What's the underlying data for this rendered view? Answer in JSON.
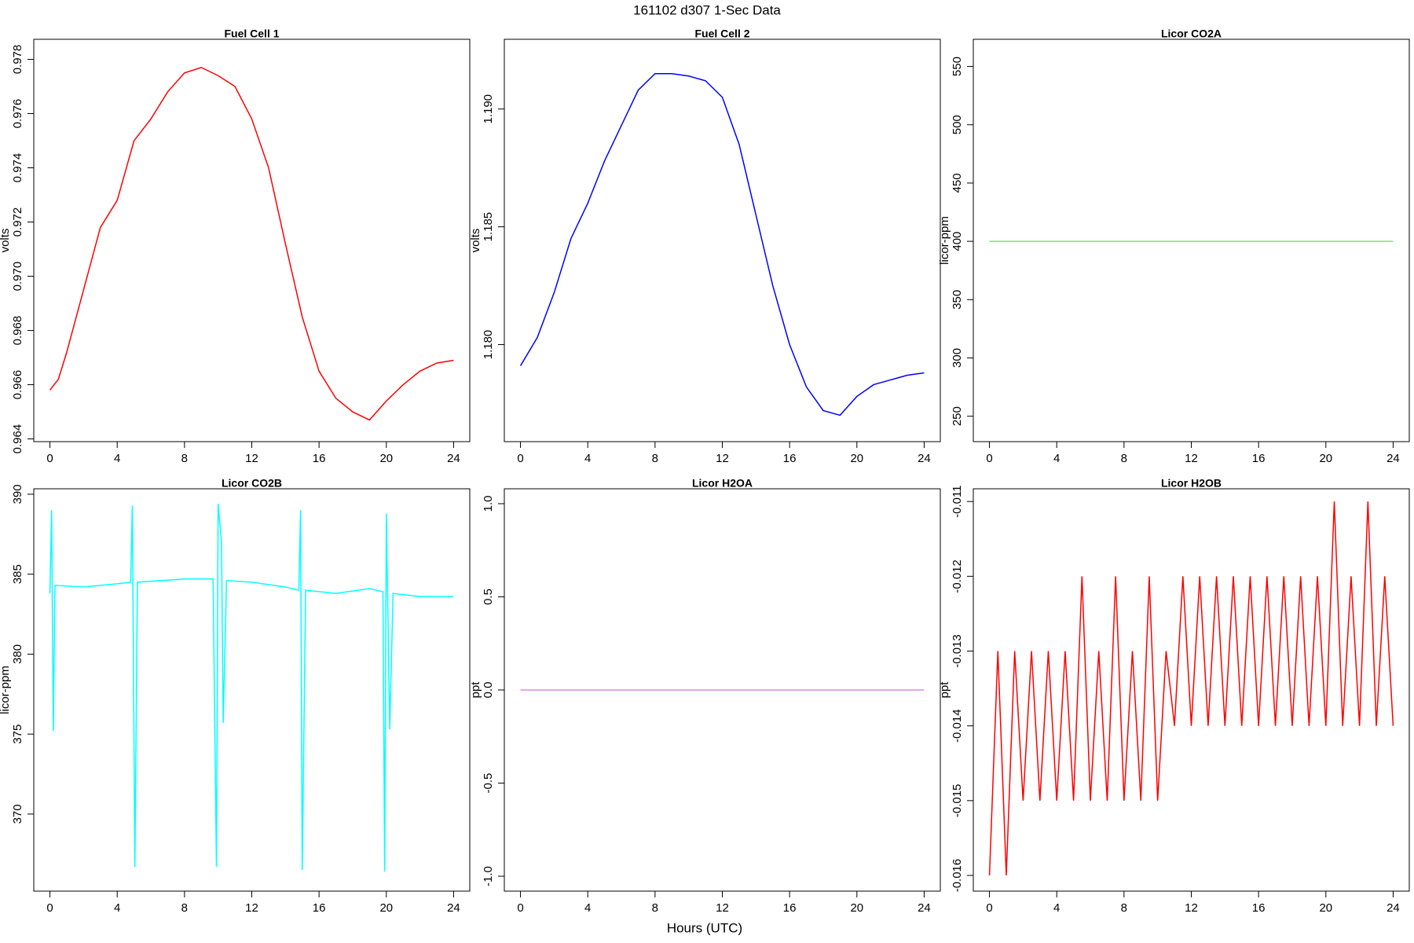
{
  "title": "161102   d307   1-Sec Data",
  "xlabel": "Hours (UTC)",
  "chart_data": [
    {
      "type": "line",
      "title": "Fuel Cell 1",
      "ylabel": "volts",
      "color": "#ff0000",
      "x": [
        0,
        0.5,
        1,
        2,
        3,
        4,
        5,
        6,
        7,
        8,
        9,
        10,
        11,
        12,
        13,
        14,
        15,
        16,
        17,
        18,
        19,
        20,
        21,
        22,
        23,
        24
      ],
      "values": [
        0.9658,
        0.9662,
        0.9672,
        0.9695,
        0.9718,
        0.9728,
        0.975,
        0.9758,
        0.9768,
        0.9775,
        0.9777,
        0.9774,
        0.977,
        0.9758,
        0.974,
        0.9712,
        0.9685,
        0.9665,
        0.9655,
        0.965,
        0.9647,
        0.9654,
        0.966,
        0.9665,
        0.9668,
        0.9669
      ],
      "xlim": [
        -0.96,
        24.96
      ],
      "xticks": [
        0,
        4,
        8,
        12,
        16,
        20,
        24
      ],
      "ylim": [
        0.9639,
        0.97874
      ],
      "yticks": [
        {
          "value": 0.964,
          "label": "0.964"
        },
        {
          "value": 0.966,
          "label": "0.966"
        },
        {
          "value": 0.968,
          "label": "0.968"
        },
        {
          "value": 0.97,
          "label": "0.970"
        },
        0.972,
        0.974,
        0.976,
        0.978
      ]
    },
    {
      "type": "line",
      "title": "Fuel Cell 2",
      "ylabel": "volts",
      "color": "#0000ff",
      "x": [
        0,
        1,
        2,
        3,
        4,
        5,
        6,
        7,
        8,
        9,
        10,
        11,
        12,
        13,
        14,
        15,
        16,
        17,
        18,
        19,
        20,
        21,
        22,
        23,
        24
      ],
      "values": [
        1.1791,
        1.1803,
        1.1822,
        1.1845,
        1.186,
        1.1878,
        1.1893,
        1.1908,
        1.1915,
        1.1915,
        1.1914,
        1.1912,
        1.1905,
        1.1885,
        1.1855,
        1.1825,
        1.18,
        1.1782,
        1.1772,
        1.177,
        1.1778,
        1.1783,
        1.1785,
        1.1787,
        1.1788
      ],
      "xlim": [
        -0.96,
        24.96
      ],
      "xticks": [
        0,
        4,
        8,
        12,
        16,
        20,
        24
      ],
      "ylim": [
        1.17588,
        1.19296
      ],
      "yticks": [
        {
          "value": 1.18,
          "label": "1.180"
        },
        1.185,
        {
          "value": 1.19,
          "label": "1.190"
        }
      ]
    },
    {
      "type": "line",
      "title": "Licor CO2A",
      "ylabel": "licor-ppm",
      "color": "#66ee66",
      "x": [
        0,
        24
      ],
      "values": [
        400,
        400
      ],
      "xlim": [
        -0.96,
        24.96
      ],
      "xticks": [
        0,
        4,
        8,
        12,
        16,
        20,
        24
      ],
      "ylim": [
        228.2,
        573.3
      ],
      "yticks": [
        250,
        300,
        350,
        400,
        450,
        500,
        550
      ]
    },
    {
      "type": "line",
      "title": "Licor CO2B",
      "ylabel": "licor-ppm",
      "color": "#00ffff",
      "x": [
        0,
        0.1,
        0.2,
        0.3,
        2,
        4,
        4.8,
        4.9,
        5.05,
        5.2,
        8,
        9.7,
        9.9,
        10,
        10.2,
        10.3,
        10.5,
        12,
        14,
        14.8,
        14.9,
        15,
        15.2,
        17,
        19,
        19.8,
        19.9,
        20,
        20.2,
        20.4,
        22,
        24
      ],
      "values": [
        383.8,
        389,
        375.2,
        384.3,
        384.2,
        384.4,
        384.5,
        389.3,
        366.7,
        384.5,
        384.7,
        384.7,
        366.7,
        389.4,
        387,
        375.7,
        384.6,
        384.5,
        384.2,
        384,
        389,
        366.5,
        384,
        383.8,
        384.1,
        383.9,
        366.4,
        388.8,
        375.3,
        383.8,
        383.6,
        383.6
      ],
      "xlim": [
        -0.96,
        24.96
      ],
      "xticks": [
        0,
        4,
        8,
        12,
        16,
        20,
        24
      ],
      "ylim": [
        365.18,
        390.34
      ],
      "yticks": [
        370,
        375,
        380,
        385,
        390
      ]
    },
    {
      "type": "line",
      "title": "Licor H2OA",
      "ylabel": "ppt",
      "color": "#dd88dd",
      "x": [
        0,
        24
      ],
      "values": [
        0,
        0
      ],
      "xlim": [
        -0.96,
        24.96
      ],
      "xticks": [
        0,
        4,
        8,
        12,
        16,
        20,
        24
      ],
      "ylim": [
        -1.08,
        1.08
      ],
      "yticks": [
        {
          "value": -1,
          "label": "-1.0"
        },
        -0.5,
        {
          "value": 0,
          "label": "0.0"
        },
        0.5,
        {
          "value": 1,
          "label": "1.0"
        }
      ]
    },
    {
      "type": "line",
      "title": "Licor H2OB",
      "ylabel": "ppt",
      "color": "#ff0000",
      "x": [
        0,
        0.5,
        1,
        1.5,
        2,
        2.5,
        3,
        3.5,
        4,
        4.5,
        5,
        5.5,
        6,
        6.5,
        7,
        7.5,
        8,
        8.5,
        9,
        9.5,
        10,
        10.5,
        11,
        11.5,
        12,
        12.5,
        13,
        13.5,
        14,
        14.5,
        15,
        15.5,
        16,
        16.5,
        17,
        17.5,
        18,
        18.5,
        19,
        19.5,
        20,
        20.5,
        21,
        21.5,
        22,
        22.5,
        23,
        23.5,
        24
      ],
      "values": [
        -0.016,
        -0.013,
        -0.016,
        -0.013,
        -0.015,
        -0.013,
        -0.015,
        -0.013,
        -0.015,
        -0.013,
        -0.015,
        -0.012,
        -0.015,
        -0.013,
        -0.015,
        -0.012,
        -0.015,
        -0.013,
        -0.015,
        -0.012,
        -0.015,
        -0.013,
        -0.014,
        -0.012,
        -0.014,
        -0.012,
        -0.014,
        -0.012,
        -0.014,
        -0.012,
        -0.014,
        -0.012,
        -0.014,
        -0.012,
        -0.014,
        -0.012,
        -0.014,
        -0.012,
        -0.014,
        -0.012,
        -0.014,
        -0.011,
        -0.014,
        -0.012,
        -0.014,
        -0.011,
        -0.014,
        -0.012,
        -0.014
      ],
      "xlim": [
        -0.96,
        24.96
      ],
      "xticks": [
        0,
        4,
        8,
        12,
        16,
        20,
        24
      ],
      "ylim": [
        -0.01621,
        -0.01083
      ],
      "yticks": [
        -0.016,
        -0.015,
        -0.014,
        -0.013,
        -0.012,
        -0.011
      ]
    }
  ]
}
